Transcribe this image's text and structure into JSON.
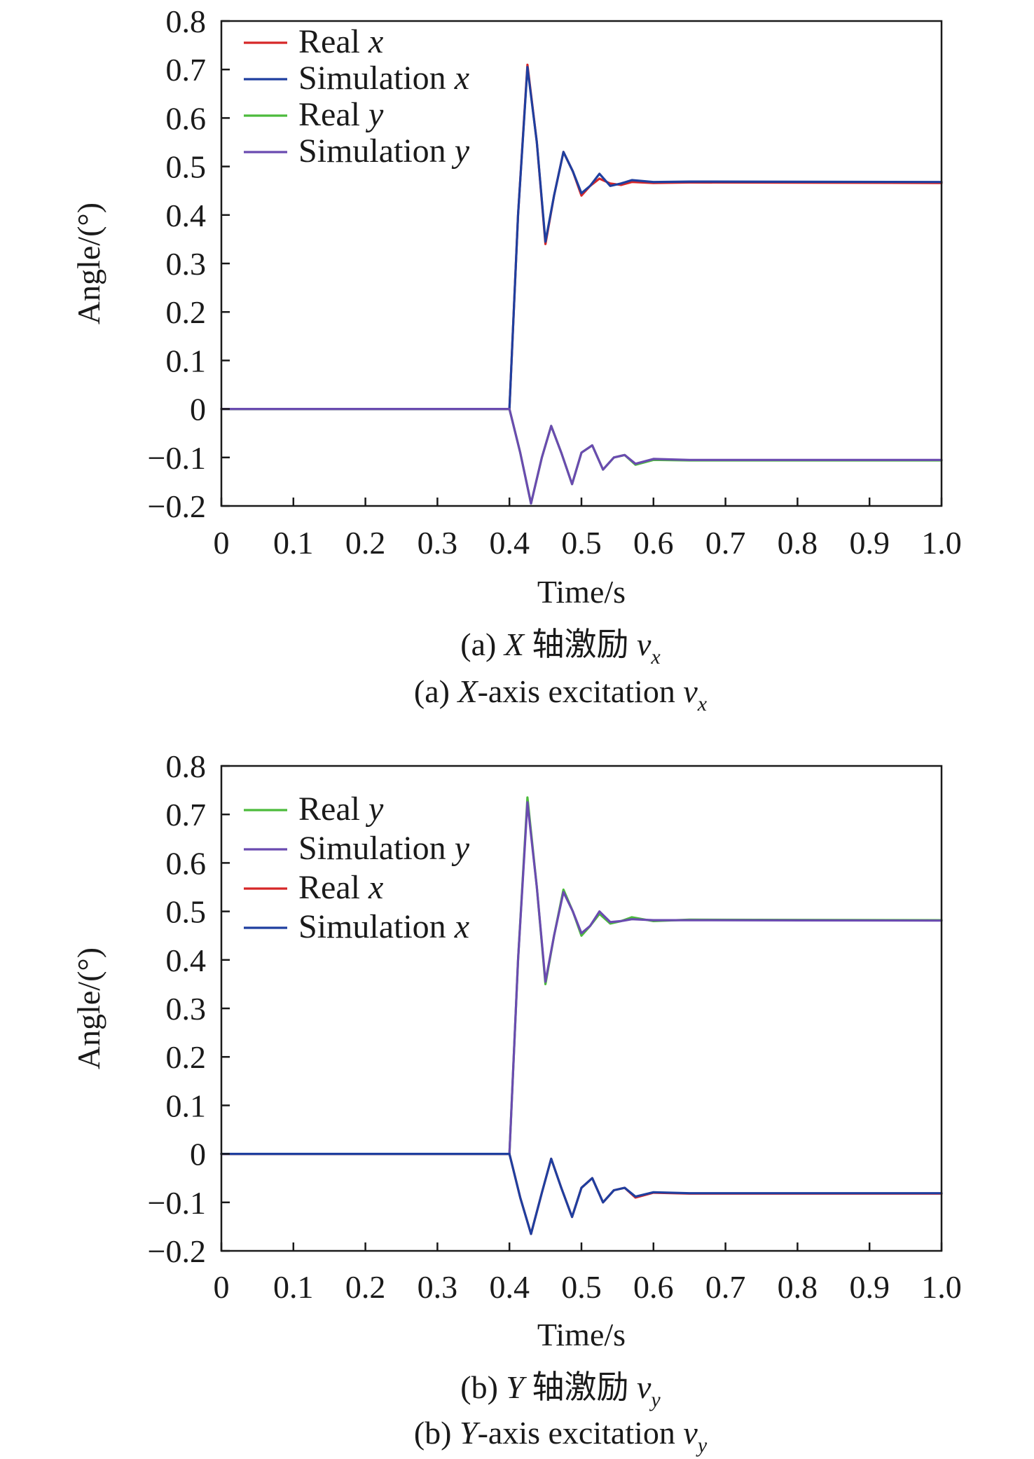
{
  "chart_data": [
    {
      "type": "line",
      "title": "",
      "xlabel": "Time/s",
      "ylabel": "Angle/(°)",
      "xlim": [
        0,
        1.0
      ],
      "ylim": [
        -0.2,
        0.8
      ],
      "xticks": [
        "0",
        "0.1",
        "0.2",
        "0.3",
        "0.4",
        "0.5",
        "0.6",
        "0.7",
        "0.8",
        "0.9",
        "1.0"
      ],
      "yticks": [
        "−0.2",
        "−0.1",
        "0",
        "0.1",
        "0.2",
        "0.3",
        "0.4",
        "0.5",
        "0.6",
        "0.7",
        "0.8"
      ],
      "legend_position": "top-left",
      "grid": false,
      "caption_cn": {
        "prefix": "(a) ",
        "axis": "X",
        "text": " 轴激励 ",
        "var": "v",
        "sub": "x"
      },
      "caption_en": {
        "prefix": "(a) ",
        "axis": "X",
        "text": "-axis excitation ",
        "var": "v",
        "sub": "x"
      },
      "series": [
        {
          "name": "Real",
          "var": "x",
          "color": "#d62728",
          "x": [
            0,
            0.4,
            0.412,
            0.425,
            0.438,
            0.45,
            0.462,
            0.475,
            0.488,
            0.5,
            0.512,
            0.525,
            0.54,
            0.555,
            0.57,
            0.6,
            0.65,
            1.0
          ],
          "y": [
            0,
            0,
            0.4,
            0.71,
            0.55,
            0.34,
            0.44,
            0.53,
            0.49,
            0.44,
            0.46,
            0.475,
            0.465,
            0.462,
            0.468,
            0.466,
            0.467,
            0.466
          ]
        },
        {
          "name": "Simulation",
          "var": "x",
          "color": "#1f3f9f",
          "x": [
            0,
            0.4,
            0.412,
            0.425,
            0.438,
            0.45,
            0.462,
            0.475,
            0.488,
            0.5,
            0.512,
            0.525,
            0.54,
            0.555,
            0.57,
            0.6,
            0.65,
            1.0
          ],
          "y": [
            0,
            0,
            0.4,
            0.705,
            0.55,
            0.345,
            0.44,
            0.53,
            0.49,
            0.445,
            0.46,
            0.485,
            0.46,
            0.465,
            0.472,
            0.468,
            0.469,
            0.468
          ]
        },
        {
          "name": "Real",
          "var": "y",
          "color": "#4cbb3c",
          "x": [
            0,
            0.4,
            0.415,
            0.43,
            0.445,
            0.458,
            0.472,
            0.487,
            0.5,
            0.515,
            0.53,
            0.545,
            0.56,
            0.575,
            0.6,
            0.65,
            1.0
          ],
          "y": [
            0,
            0,
            -0.09,
            -0.195,
            -0.1,
            -0.035,
            -0.09,
            -0.155,
            -0.09,
            -0.075,
            -0.125,
            -0.1,
            -0.095,
            -0.115,
            -0.105,
            -0.106,
            -0.106
          ]
        },
        {
          "name": "Simulation",
          "var": "y",
          "color": "#6a4bb0",
          "x": [
            0,
            0.4,
            0.415,
            0.43,
            0.445,
            0.458,
            0.472,
            0.487,
            0.5,
            0.515,
            0.53,
            0.545,
            0.56,
            0.575,
            0.6,
            0.65,
            1.0
          ],
          "y": [
            0,
            0,
            -0.09,
            -0.195,
            -0.1,
            -0.035,
            -0.09,
            -0.155,
            -0.09,
            -0.075,
            -0.125,
            -0.1,
            -0.095,
            -0.113,
            -0.103,
            -0.105,
            -0.105
          ]
        }
      ]
    },
    {
      "type": "line",
      "title": "",
      "xlabel": "Time/s",
      "ylabel": "Angle/(°)",
      "xlim": [
        0,
        1.0
      ],
      "ylim": [
        -0.2,
        0.8
      ],
      "xticks": [
        "0",
        "0.1",
        "0.2",
        "0.3",
        "0.4",
        "0.5",
        "0.6",
        "0.7",
        "0.8",
        "0.9",
        "1.0"
      ],
      "yticks": [
        "−0.2",
        "−0.1",
        "0",
        "0.1",
        "0.2",
        "0.3",
        "0.4",
        "0.5",
        "0.6",
        "0.7",
        "0.8"
      ],
      "legend_position": "top-left",
      "grid": false,
      "caption_cn": {
        "prefix": "(b) ",
        "axis": "Y",
        "text": " 轴激励 ",
        "var": "v",
        "sub": "y"
      },
      "caption_en": {
        "prefix": "(b) ",
        "axis": "Y",
        "text": "-axis excitation ",
        "var": "v",
        "sub": "y"
      },
      "series": [
        {
          "name": "Real",
          "var": "y",
          "color": "#4cbb3c",
          "x": [
            0,
            0.4,
            0.412,
            0.425,
            0.438,
            0.45,
            0.462,
            0.475,
            0.488,
            0.5,
            0.512,
            0.525,
            0.54,
            0.555,
            0.57,
            0.6,
            0.65,
            1.0
          ],
          "y": [
            0,
            0,
            0.4,
            0.735,
            0.55,
            0.35,
            0.45,
            0.545,
            0.5,
            0.45,
            0.47,
            0.495,
            0.475,
            0.48,
            0.488,
            0.48,
            0.483,
            0.482
          ]
        },
        {
          "name": "Simulation",
          "var": "y",
          "color": "#6a4bb0",
          "x": [
            0,
            0.4,
            0.412,
            0.425,
            0.438,
            0.45,
            0.462,
            0.475,
            0.488,
            0.5,
            0.512,
            0.525,
            0.54,
            0.555,
            0.57,
            0.6,
            0.65,
            1.0
          ],
          "y": [
            0,
            0,
            0.4,
            0.725,
            0.55,
            0.355,
            0.45,
            0.54,
            0.5,
            0.455,
            0.47,
            0.5,
            0.478,
            0.48,
            0.484,
            0.482,
            0.482,
            0.481
          ]
        },
        {
          "name": "Real",
          "var": "x",
          "color": "#d62728",
          "x": [
            0,
            0.4,
            0.415,
            0.43,
            0.445,
            0.458,
            0.472,
            0.487,
            0.5,
            0.515,
            0.53,
            0.545,
            0.56,
            0.575,
            0.6,
            0.65,
            1.0
          ],
          "y": [
            0,
            0,
            -0.09,
            -0.165,
            -0.08,
            -0.01,
            -0.07,
            -0.13,
            -0.07,
            -0.05,
            -0.1,
            -0.075,
            -0.07,
            -0.09,
            -0.08,
            -0.082,
            -0.082
          ]
        },
        {
          "name": "Simulation",
          "var": "x",
          "color": "#1f3f9f",
          "x": [
            0,
            0.4,
            0.415,
            0.43,
            0.445,
            0.458,
            0.472,
            0.487,
            0.5,
            0.515,
            0.53,
            0.545,
            0.56,
            0.575,
            0.6,
            0.65,
            1.0
          ],
          "y": [
            0,
            0,
            -0.09,
            -0.165,
            -0.08,
            -0.01,
            -0.07,
            -0.13,
            -0.07,
            -0.05,
            -0.1,
            -0.075,
            -0.07,
            -0.088,
            -0.079,
            -0.081,
            -0.081
          ]
        }
      ]
    }
  ]
}
